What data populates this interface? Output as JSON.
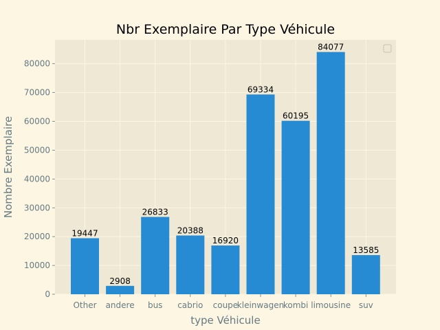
{
  "colors": {
    "figure_bg": "#fdf6e3",
    "plot_bg": "#eee8d5",
    "grid": "#fdf6e3",
    "bar": "#268bd2",
    "tick_text": "#657b83",
    "label_text": "#657b83",
    "title_text": "#000000"
  },
  "chart_data": {
    "type": "bar",
    "title": "Nbr Exemplaire Par Type Véhicule",
    "xlabel": "type Véhicule",
    "ylabel": "Nombre Exemplaire",
    "categories": [
      "Other",
      "andere",
      "bus",
      "cabrio",
      "coupe",
      "kleinwagen",
      "kombi",
      "limousine",
      "suv"
    ],
    "values": [
      19447,
      2908,
      26833,
      20388,
      16920,
      69334,
      60195,
      84077,
      13585
    ],
    "ylim": [
      0,
      88281
    ],
    "yticks": [
      0,
      10000,
      20000,
      30000,
      40000,
      50000,
      60000,
      70000,
      80000
    ],
    "grid": true,
    "legend": "top-right (empty)"
  }
}
